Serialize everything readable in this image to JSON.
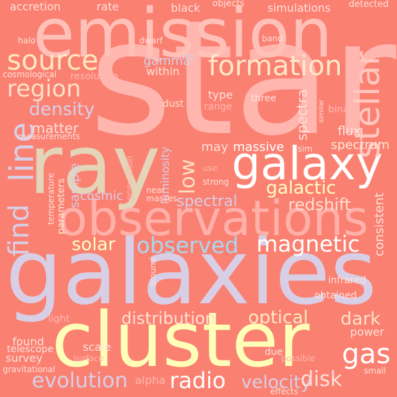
{
  "background": "#fa8072",
  "words": [
    {
      "text": "star",
      "color": "#ffb6ae"
    },
    {
      "text": "emission",
      "color": "#ffc0b8"
    },
    {
      "text": "galaxies",
      "color": "#d8cfe6"
    },
    {
      "text": "cluster",
      "color": "#ffffb8"
    },
    {
      "text": "ray",
      "color": "#e4d4b8"
    },
    {
      "text": "observations",
      "color": "#ffb0a8"
    },
    {
      "text": "galaxy",
      "color": "#ffffff"
    },
    {
      "text": "stellar",
      "color": "#ffc8c0"
    },
    {
      "text": "source",
      "color": "#ffe8c0"
    },
    {
      "text": "formation",
      "color": "#ffe8c8"
    },
    {
      "text": "line",
      "color": "#d8cfe6"
    },
    {
      "text": "find",
      "color": "#d8cfe6"
    },
    {
      "text": "region",
      "color": "#ffe0c8"
    },
    {
      "text": "density",
      "color": "#d8cfe6"
    },
    {
      "text": "observed",
      "color": "#a8d8f0"
    },
    {
      "text": "magnetic",
      "color": "#ffffff"
    },
    {
      "text": "low",
      "color": "#ffe0c0"
    },
    {
      "text": "gas",
      "color": "#ffffff"
    },
    {
      "text": "radio",
      "color": "#ffffff"
    },
    {
      "text": "evolution",
      "color": "#d8cfe6"
    },
    {
      "text": "velocity",
      "color": "#d8cfe6"
    },
    {
      "text": "disk",
      "color": "#ffe0d8"
    },
    {
      "text": "distribution",
      "color": "#ffe0d0"
    },
    {
      "text": "optical",
      "color": "#ffe8c0"
    },
    {
      "text": "dark",
      "color": "#ffe0c8"
    },
    {
      "text": "galactic",
      "color": "#ffffc0"
    },
    {
      "text": "redshift",
      "color": "#ffe0d0"
    },
    {
      "text": "spectral",
      "color": "#d8cfe6"
    },
    {
      "text": "solar",
      "color": "#ffffc0"
    },
    {
      "text": "spectra",
      "color": "#ffe0d8"
    },
    {
      "text": "matter",
      "color": "#ffe0d8"
    },
    {
      "text": "massive",
      "color": "#ffffff"
    },
    {
      "text": "may",
      "color": "#ffe0d8"
    },
    {
      "text": "spectrum",
      "color": "#ffe8d8"
    },
    {
      "text": "flux",
      "color": "#ffe8e0"
    },
    {
      "text": "consistent",
      "color": "#ffe0d8"
    },
    {
      "text": "luminosity",
      "color": "#d8cfe6"
    },
    {
      "text": "gamma",
      "color": "#d8cfe6"
    },
    {
      "text": "within",
      "color": "#ffe0d8"
    },
    {
      "text": "rm",
      "color": "#d8cfe6"
    },
    {
      "text": "dust",
      "color": "#ffe0c8"
    },
    {
      "text": "type",
      "color": "#ffe0d8"
    },
    {
      "text": "range",
      "color": "#ffb8b0"
    },
    {
      "text": "three",
      "color": "#ffe0d8"
    },
    {
      "text": "sample",
      "color": "#d8cfe6"
    },
    {
      "text": "cosmic",
      "color": "#d8cfe6"
    },
    {
      "text": "parameters",
      "color": "#ffe8d0"
    },
    {
      "text": "temperature",
      "color": "#ffe0d8"
    },
    {
      "text": "found",
      "color": "#ffe0d8"
    },
    {
      "text": "survey",
      "color": "#ffe0d8"
    },
    {
      "text": "scale",
      "color": "#ffe0d8"
    },
    {
      "text": "telescope",
      "color": "#ffe0d8"
    },
    {
      "text": "surface",
      "color": "#ffb8b0"
    },
    {
      "text": "gravitational",
      "color": "#ffe0d8"
    },
    {
      "text": "due",
      "color": "#ffe0d8"
    },
    {
      "text": "alpha",
      "color": "#ffb8b0"
    },
    {
      "text": "possible",
      "color": "#ffb8b0"
    },
    {
      "text": "power",
      "color": "#ffe0d8"
    },
    {
      "text": "small",
      "color": "#ffe0d8"
    },
    {
      "text": "effects",
      "color": "#ffe0d8"
    },
    {
      "text": "light",
      "color": "#ffb8b0"
    },
    {
      "text": "around",
      "color": "#ffe0d8"
    },
    {
      "text": "infrared",
      "color": "#ffe0d8"
    },
    {
      "text": "obtained",
      "color": "#ffe0d8"
    },
    {
      "text": "accretion",
      "color": "#ffe0d8"
    },
    {
      "text": "rate",
      "color": "#ffe0d8"
    },
    {
      "text": "black",
      "color": "#ffe0d8"
    },
    {
      "text": "objects",
      "color": "#ffe0d8"
    },
    {
      "text": "simulations",
      "color": "#ffe0d8"
    },
    {
      "text": "detected",
      "color": "#ffe0d8"
    },
    {
      "text": "halo",
      "color": "#ffe0d8"
    },
    {
      "text": "dwarf",
      "color": "#ffe0d8"
    },
    {
      "text": "band",
      "color": "#ffe0d8"
    },
    {
      "text": "cosmological",
      "color": "#ffe0d8"
    },
    {
      "text": "resolution",
      "color": "#ffb8b0"
    },
    {
      "text": "measurements",
      "color": "#ffe0d8"
    },
    {
      "text": "binary",
      "color": "#ffb8b0"
    },
    {
      "text": "similar",
      "color": "#ffe0d8"
    },
    {
      "text": "sim",
      "color": "#ffe0d8"
    },
    {
      "text": "use",
      "color": "#ffb8b0"
    },
    {
      "text": "population",
      "color": "#ffb8b0"
    },
    {
      "text": "near",
      "color": "#ffe0d8"
    },
    {
      "text": "masses",
      "color": "#ffe0d8"
    },
    {
      "text": "strong",
      "color": "#ffe0d8"
    }
  ]
}
